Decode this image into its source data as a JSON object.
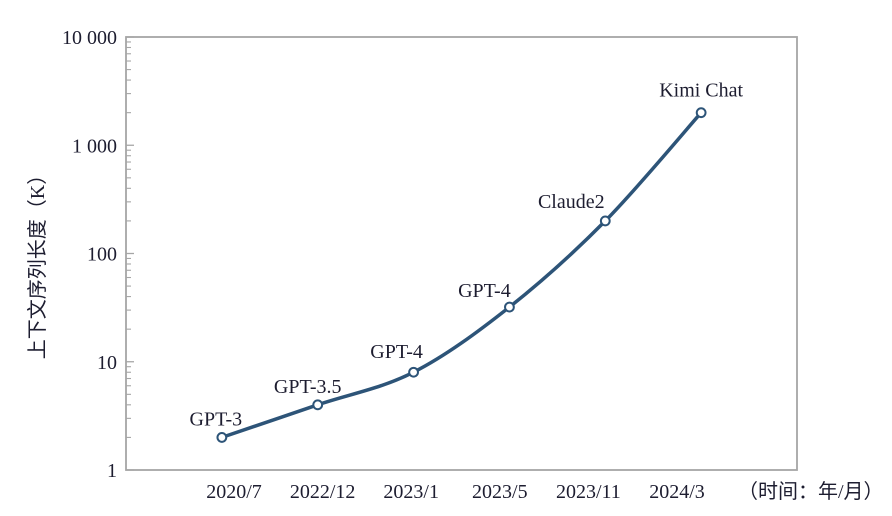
{
  "colors": {
    "line": "#2d5478",
    "marker_fill": "#ffffff",
    "axis": "#a6a6a6",
    "text": "#1d1d30",
    "background": "#ffffff"
  },
  "chart_data": {
    "type": "line",
    "title": "",
    "ylabel": "上下文序列长度（K）",
    "xlabel": "（时间：年/月）",
    "y_unit": "K",
    "grid": false,
    "legend": false,
    "marker": "open-circle",
    "y_axis": {
      "scale": "log",
      "min": 1,
      "max": 10000,
      "ticks": [
        {
          "value": 1,
          "label": "1"
        },
        {
          "value": 10,
          "label": "10"
        },
        {
          "value": 100,
          "label": "100"
        },
        {
          "value": 1000,
          "label": "1 000"
        },
        {
          "value": 10000,
          "label": "10 000"
        }
      ]
    },
    "categories": [
      "2020/7",
      "2022/12",
      "2023/1",
      "2023/5",
      "2023/11",
      "2024/3"
    ],
    "series": [
      {
        "name": "上下文序列长度",
        "color": "#2d5478",
        "points": [
          {
            "category": "2020/7",
            "model": "GPT-3",
            "value_k": 2,
            "label_offset": [
              -6,
              -12
            ]
          },
          {
            "category": "2022/12",
            "model": "GPT-3.5",
            "value_k": 4,
            "label_offset": [
              -10,
              -12
            ]
          },
          {
            "category": "2023/1",
            "model": "GPT-4",
            "value_k": 8,
            "label_offset": [
              -17,
              -14
            ]
          },
          {
            "category": "2023/5",
            "model": "GPT-4",
            "value_k": 32,
            "label_offset": [
              -25,
              -10
            ]
          },
          {
            "category": "2023/11",
            "model": "Claude2",
            "value_k": 200,
            "label_offset": [
              -34,
              -13
            ]
          },
          {
            "category": "2024/3",
            "model": "Kimi Chat",
            "value_k": 2000,
            "label_offset": [
              0,
              -16
            ]
          }
        ]
      }
    ]
  }
}
